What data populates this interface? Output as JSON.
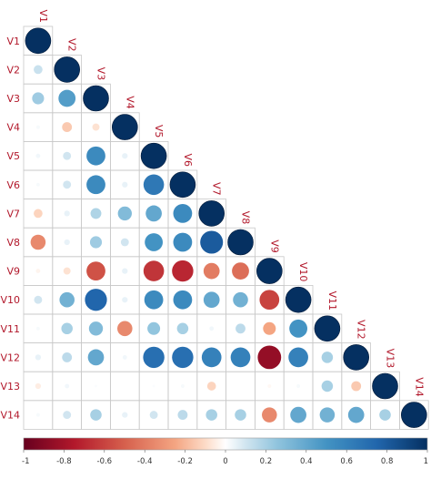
{
  "chart_data": {
    "type": "heatmap",
    "subtype": "correlation-matrix-lower-triangle-circles",
    "variables": [
      "V1",
      "V2",
      "V3",
      "V4",
      "V5",
      "V6",
      "V7",
      "V8",
      "V9",
      "V10",
      "V11",
      "V12",
      "V13",
      "V14"
    ],
    "matrix": [
      [
        1
      ],
      [
        0.12,
        1
      ],
      [
        0.22,
        0.45,
        1
      ],
      [
        0.02,
        -0.15,
        -0.08,
        1
      ],
      [
        0.03,
        0.1,
        0.55,
        0.05,
        1
      ],
      [
        0.02,
        0.1,
        0.55,
        0.05,
        0.65,
        1
      ],
      [
        -0.12,
        0.05,
        0.18,
        0.3,
        0.4,
        0.55,
        1
      ],
      [
        -0.35,
        0.05,
        0.22,
        0.1,
        0.5,
        0.55,
        0.8,
        1
      ],
      [
        -0.03,
        -0.08,
        -0.55,
        0.05,
        -0.65,
        -0.7,
        -0.4,
        -0.45,
        1
      ],
      [
        0.1,
        0.35,
        0.75,
        0.05,
        0.55,
        0.55,
        0.4,
        0.35,
        -0.6,
        1
      ],
      [
        0.02,
        0.2,
        0.3,
        -0.35,
        0.25,
        0.2,
        0.03,
        0.15,
        -0.25,
        0.5,
        1
      ],
      [
        0.05,
        0.15,
        0.4,
        0.03,
        0.7,
        0.7,
        0.6,
        0.6,
        -0.85,
        0.6,
        0.2,
        1
      ],
      [
        -0.05,
        0.03,
        0.01,
        0.0,
        0.01,
        0.02,
        -0.12,
        0.0,
        -0.02,
        0.02,
        0.2,
        -0.15,
        1
      ],
      [
        0.02,
        0.1,
        0.2,
        0.05,
        0.1,
        0.15,
        0.2,
        0.2,
        -0.35,
        0.4,
        0.35,
        0.4,
        0.2,
        1
      ]
    ],
    "color_scale": {
      "min": -1,
      "max": 1,
      "ticks": [
        "-1",
        "-0.8",
        "-0.6",
        "-0.4",
        "-0.2",
        "0",
        "0.2",
        "0.4",
        "0.6",
        "0.8",
        "1"
      ],
      "stops": [
        {
          "value": -1,
          "color": "#67001F"
        },
        {
          "value": -0.75,
          "color": "#B2182B"
        },
        {
          "value": -0.5,
          "color": "#D6604D"
        },
        {
          "value": -0.25,
          "color": "#F4A582"
        },
        {
          "value": -0.1,
          "color": "#FDDBC7"
        },
        {
          "value": 0,
          "color": "#FFFFFF"
        },
        {
          "value": 0.1,
          "color": "#D1E5F0"
        },
        {
          "value": 0.25,
          "color": "#92C5DE"
        },
        {
          "value": 0.5,
          "color": "#4393C3"
        },
        {
          "value": 0.75,
          "color": "#2166AC"
        },
        {
          "value": 1,
          "color": "#053061"
        }
      ]
    },
    "label_color": "#B2182B",
    "grid_color": "#C8C8C8"
  }
}
